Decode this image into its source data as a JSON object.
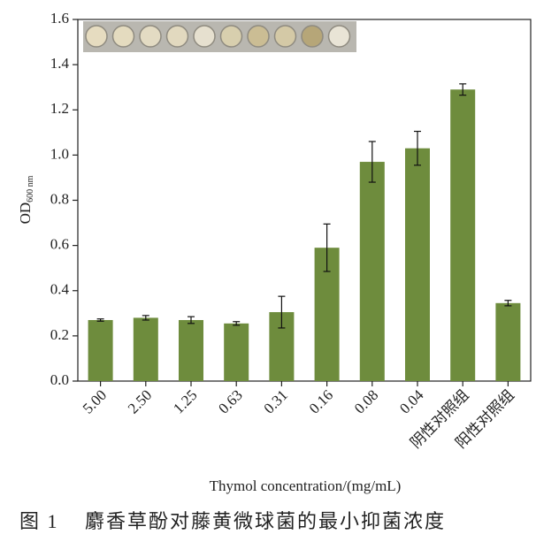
{
  "chart_data": {
    "type": "bar",
    "categories": [
      "5.00",
      "2.50",
      "1.25",
      "0.63",
      "0.31",
      "0.16",
      "0.08",
      "0.04",
      "阴性对照组",
      "阳性对照组"
    ],
    "values": [
      0.27,
      0.28,
      0.27,
      0.255,
      0.305,
      0.59,
      0.97,
      1.03,
      1.29,
      0.345
    ],
    "errors": [
      0.005,
      0.01,
      0.015,
      0.008,
      0.07,
      0.105,
      0.09,
      0.075,
      0.025,
      0.012
    ],
    "color": "#6e8c3d",
    "ylim": [
      0,
      1.6
    ],
    "yticks": [
      {
        "value": 0,
        "label": "0.0"
      },
      0.2,
      0.4,
      0.6,
      0.8,
      {
        "value": 1,
        "label": "1.0"
      },
      1.2,
      1.4,
      1.6
    ],
    "y_label": {
      "text": "OD",
      "subscript": "600 nm"
    },
    "x_label": "Thymol concentration/(mg/mL)"
  },
  "caption": {
    "label": "图 1",
    "text": "麝香草酚对藤黄微球菌的最小抑菌浓度"
  }
}
